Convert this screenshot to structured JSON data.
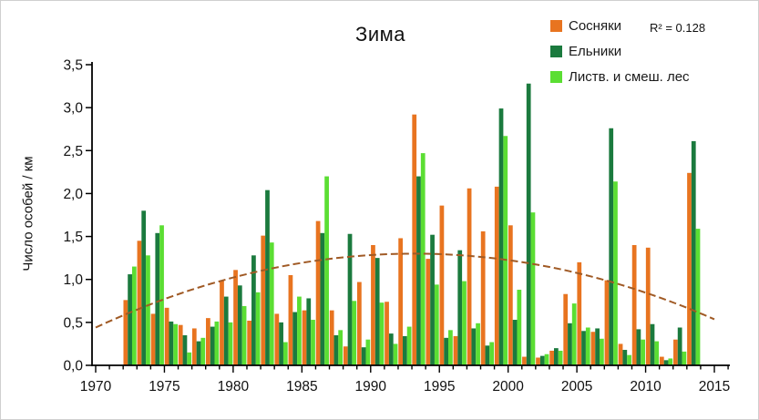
{
  "title": "Зима",
  "legend": {
    "items": [
      {
        "label": "Сосняки",
        "color": "#E87420"
      },
      {
        "label": "Ельники",
        "color": "#1B7A3E"
      },
      {
        "label": "Листв. и смеш. лес",
        "color": "#5BDE33"
      }
    ],
    "r_squared": "R² = 0.128"
  },
  "chart_data": {
    "type": "bar",
    "title": "Зима",
    "xlabel": "",
    "ylabel": "Число особей / км",
    "ylim": [
      0,
      3.5
    ],
    "ytick_labels": [
      "0,0",
      "0,5",
      "1,0",
      "1,5",
      "2,0",
      "2,5",
      "3,0",
      "3,5"
    ],
    "ytick_values": [
      0,
      0.5,
      1.0,
      1.5,
      2.0,
      2.5,
      3.0,
      3.5
    ],
    "xticks": [
      1970,
      1975,
      1980,
      1985,
      1990,
      1995,
      2000,
      2005,
      2010,
      2015
    ],
    "x_range": [
      1970,
      2016
    ],
    "grid": false,
    "legend_position": "top-right",
    "categories": [
      1972,
      1973,
      1974,
      1975,
      1976,
      1977,
      1978,
      1979,
      1980,
      1981,
      1982,
      1983,
      1984,
      1985,
      1986,
      1987,
      1988,
      1989,
      1990,
      1991,
      1992,
      1993,
      1994,
      1995,
      1996,
      1997,
      1998,
      1999,
      2000,
      2001,
      2002,
      2003,
      2004,
      2005,
      2006,
      2007,
      2008,
      2009,
      2010,
      2011,
      2012,
      2013
    ],
    "series": [
      {
        "name": "Сосняки",
        "color": "#E87420",
        "values": [
          0.76,
          1.45,
          0.6,
          0.67,
          0.47,
          0.43,
          0.55,
          0.99,
          1.11,
          0.52,
          1.51,
          0.6,
          1.05,
          0.64,
          1.68,
          0.64,
          0.22,
          0.97,
          1.4,
          0.74,
          1.48,
          2.92,
          1.24,
          1.86,
          0.34,
          2.06,
          1.56,
          2.08,
          1.63,
          0.1,
          0.09,
          0.17,
          0.83,
          1.2,
          0.39,
          0.99,
          0.25,
          1.4,
          1.37,
          0.1,
          0.3,
          2.24
        ]
      },
      {
        "name": "Ельники",
        "color": "#1B7A3E",
        "values": [
          1.06,
          1.8,
          1.54,
          0.51,
          0.35,
          0.28,
          0.45,
          0.8,
          0.93,
          1.28,
          2.04,
          0.5,
          0.62,
          0.78,
          1.54,
          0.35,
          1.53,
          0.21,
          1.25,
          0.37,
          0.34,
          2.2,
          1.52,
          0.32,
          1.34,
          0.43,
          0.23,
          2.99,
          0.53,
          3.28,
          0.11,
          0.2,
          0.49,
          0.4,
          0.43,
          2.76,
          0.18,
          0.42,
          0.48,
          0.06,
          0.44,
          2.61
        ]
      },
      {
        "name": "Листв. и смеш. лес",
        "color": "#5BDE33",
        "values": [
          1.15,
          1.28,
          1.63,
          0.48,
          0.15,
          0.32,
          0.51,
          0.5,
          0.69,
          0.85,
          1.43,
          0.27,
          0.8,
          0.53,
          2.2,
          0.41,
          0.75,
          0.3,
          0.73,
          0.25,
          0.45,
          2.47,
          0.94,
          0.41,
          0.98,
          0.49,
          0.27,
          2.67,
          0.88,
          1.78,
          0.13,
          0.17,
          0.72,
          0.44,
          0.31,
          2.14,
          0.12,
          0.3,
          0.28,
          0.08,
          0.16,
          1.59
        ]
      }
    ],
    "trendline": {
      "series": "Сосняки",
      "kind": "polynomial-2",
      "r_squared": 0.128,
      "color": "#A05A25",
      "dashed": true,
      "quadratic": {
        "t0": 1970,
        "a": -0.0016021,
        "b": 0.074239,
        "c": 0.44
      },
      "t_end": 45.3
    }
  }
}
